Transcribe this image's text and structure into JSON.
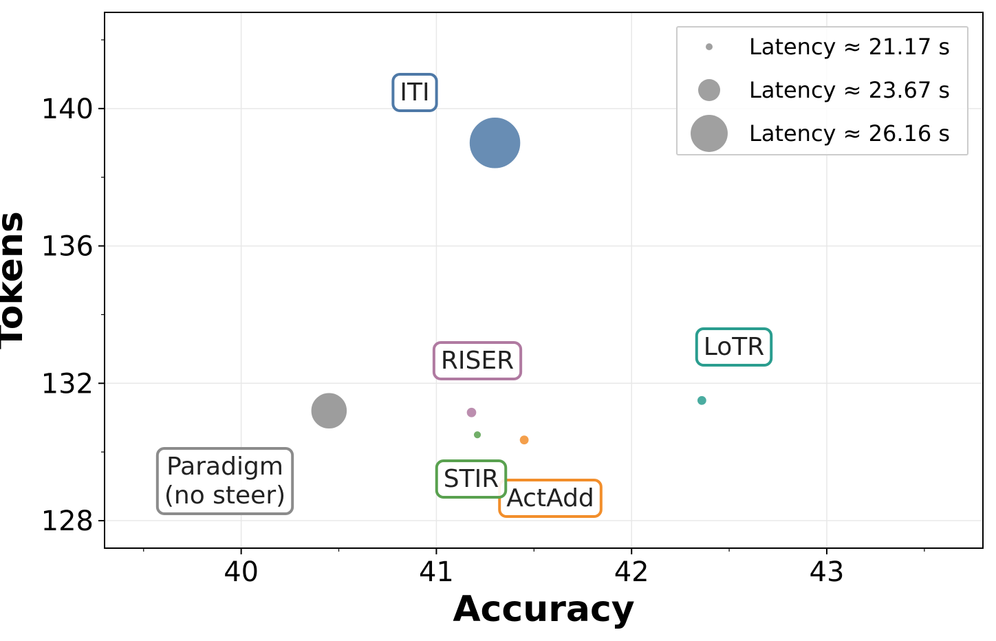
{
  "chart_data": {
    "type": "scatter",
    "title": "",
    "xlabel": "Accuracy",
    "ylabel": "Tokens",
    "xlim": [
      39.3,
      43.8
    ],
    "ylim": [
      127.2,
      142.8
    ],
    "x_ticks": [
      "40",
      "41",
      "42",
      "43"
    ],
    "y_ticks": [
      "128",
      "132",
      "136",
      "140"
    ],
    "grid": true,
    "legend_title": "",
    "legend_position": "top-right",
    "legend": [
      {
        "label": "Latency ≈ 21.17 s",
        "latency": 21.17
      },
      {
        "label": "Latency ≈ 23.67 s",
        "latency": 23.67
      },
      {
        "label": "Latency ≈ 26.16 s",
        "latency": 26.16
      }
    ],
    "points": [
      {
        "label": "ITI",
        "x": 41.3,
        "y": 139.0,
        "latency": 28.5,
        "color": "#4e79a7"
      },
      {
        "label": "Paradigm\n(no steer)",
        "x": 40.45,
        "y": 131.2,
        "latency": 26.0,
        "color": "#8c8c8c"
      },
      {
        "label": "RISER",
        "x": 41.18,
        "y": 131.15,
        "latency": 21.7,
        "color": "#b07aa1"
      },
      {
        "label": "STIR",
        "x": 41.21,
        "y": 130.5,
        "latency": 21.3,
        "color": "#59a14f"
      },
      {
        "label": "ActAdd",
        "x": 41.45,
        "y": 130.35,
        "latency": 21.6,
        "color": "#f28e2b"
      },
      {
        "label": "LoTR",
        "x": 42.36,
        "y": 131.5,
        "latency": 21.6,
        "color": "#2a9d8f"
      }
    ],
    "colors": {
      "legend_marker": "#a0a0a0",
      "grid": "#e8e8e8"
    }
  }
}
